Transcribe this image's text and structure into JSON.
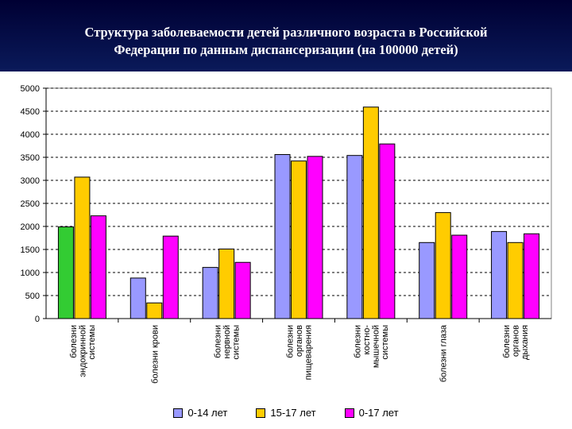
{
  "header": {
    "title_line1": "Структура заболеваемости детей различного возраста в Российской",
    "title_line2": "Федерации по данным диспансеризации (на 100000 детей)"
  },
  "colors": {
    "header_bg": "#0a1a5a",
    "series_0_14": "#9999ff",
    "series_15_17": "#ffcc00",
    "series_0_17": "#ff00ff",
    "highlight_0_14": "#33cc33"
  },
  "chart_data": {
    "type": "bar",
    "title": "Структура заболеваемости детей различного возраста в Российской Федерации по данным диспансеризации (на 100000 детей)",
    "xlabel": "",
    "ylabel": "",
    "ylim": [
      0,
      5000
    ],
    "yticks": [
      "0",
      "500",
      "1000",
      "1500",
      "2000",
      "2500",
      "3000",
      "3500",
      "4000",
      "4500",
      "5000"
    ],
    "grid": "dashed horizontal",
    "legend_position": "bottom",
    "categories": [
      [
        "болезни",
        "эндокринной",
        "системы"
      ],
      [
        "болезни крови"
      ],
      [
        "болезни",
        "нервной",
        "системы"
      ],
      [
        "болезни",
        "органов",
        "пищеварения"
      ],
      [
        "болезни",
        "костно-",
        "мышечной",
        "системы"
      ],
      [
        "болезни глаза"
      ],
      [
        "болезни",
        "органов",
        "дыхания"
      ]
    ],
    "series": [
      {
        "name": "0-14 лет",
        "values": [
          1990,
          880,
          1110,
          3560,
          3540,
          1650,
          1890
        ]
      },
      {
        "name": "15-17 лет",
        "values": [
          3070,
          340,
          1510,
          3420,
          4590,
          2300,
          1650
        ]
      },
      {
        "name": "0-17 лет",
        "values": [
          2230,
          1790,
          1220,
          3520,
          3790,
          1810,
          1840
        ]
      }
    ]
  }
}
